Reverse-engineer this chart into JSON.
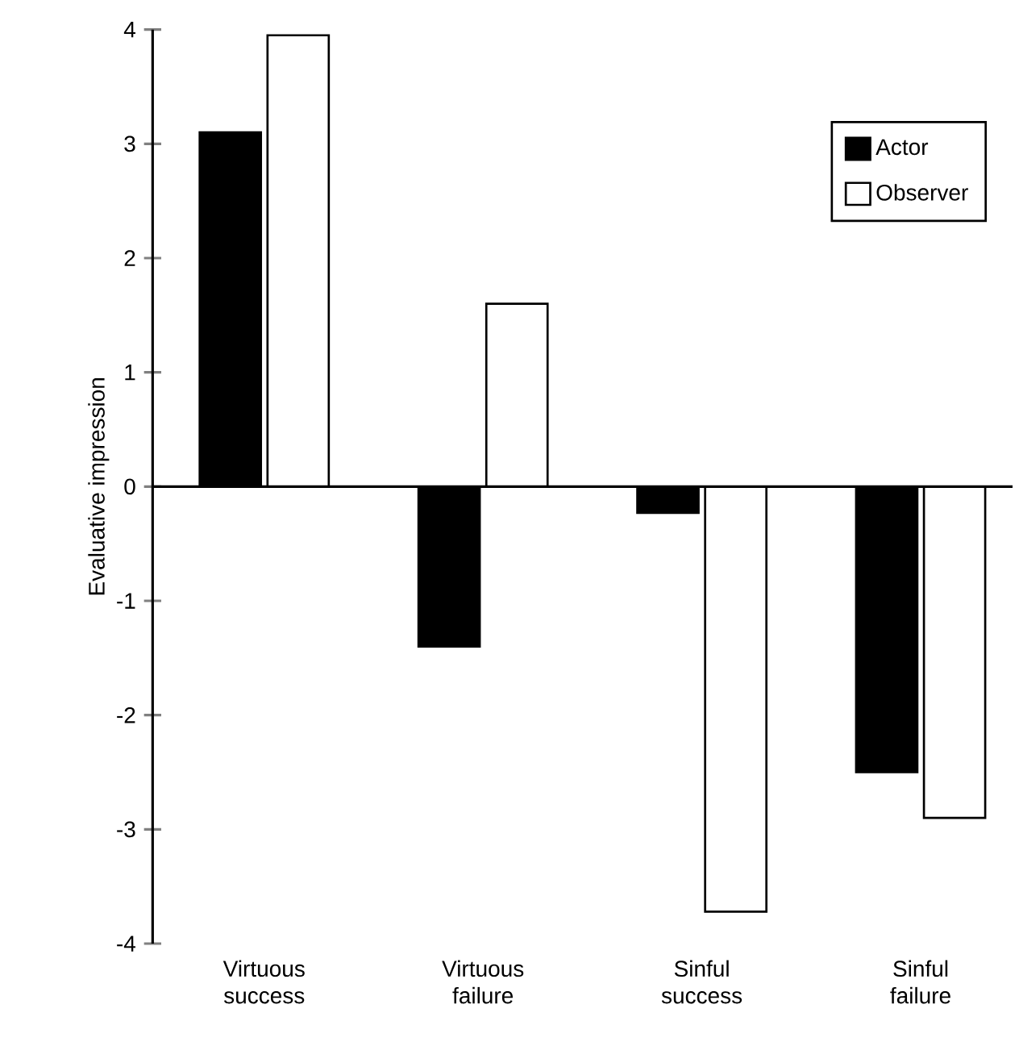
{
  "chart_data": {
    "type": "bar",
    "ylabel": "Evaluative impression",
    "categories": [
      "Virtuous success",
      "Virtuous failure",
      "Sinful success",
      "Sinful failure"
    ],
    "series": [
      {
        "name": "Actor",
        "color": "#000000",
        "values": [
          3.1,
          -1.4,
          -0.23,
          -2.5
        ]
      },
      {
        "name": "Observer",
        "color": "#ffffff",
        "values": [
          3.95,
          1.6,
          -3.72,
          -2.9
        ]
      }
    ],
    "ylim": [
      -4,
      4
    ],
    "yticks": [
      -4,
      -3,
      -2,
      -1,
      0,
      1,
      2,
      3,
      4
    ],
    "legend": "top right"
  }
}
